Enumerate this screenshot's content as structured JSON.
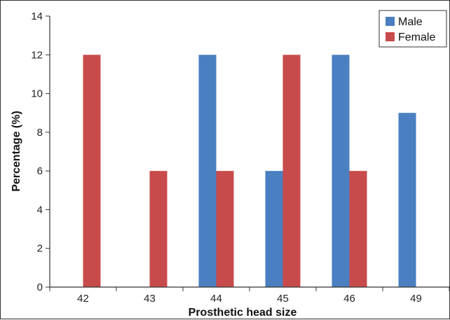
{
  "chart_data": {
    "type": "bar",
    "xlabel": "Prosthetic head size",
    "ylabel": "Percentage (%)",
    "categories": [
      "42",
      "43",
      "44",
      "45",
      "46",
      "49"
    ],
    "series": [
      {
        "name": "Male",
        "color": "#4a7fc1",
        "values": [
          0,
          0,
          12,
          6,
          12,
          9
        ]
      },
      {
        "name": "Female",
        "color": "#c84b4b",
        "values": [
          12,
          6,
          6,
          12,
          6,
          0
        ]
      }
    ],
    "ylim": [
      0,
      14
    ],
    "yticks": [
      "0",
      "2",
      "4",
      "6",
      "8",
      "10",
      "12",
      "14"
    ],
    "grid": false,
    "legend_position": "top-right"
  }
}
